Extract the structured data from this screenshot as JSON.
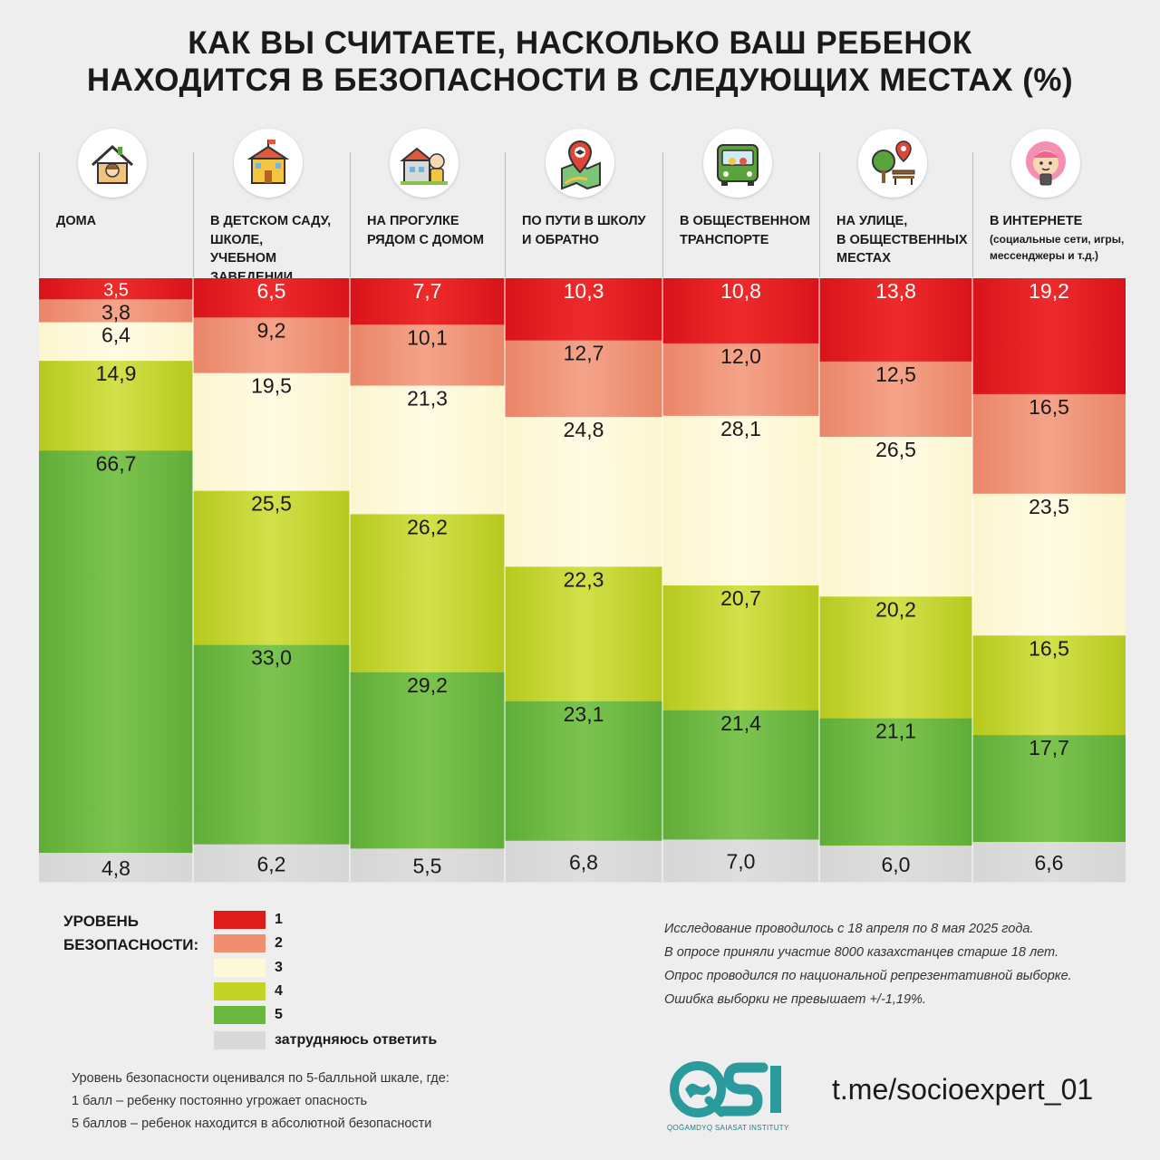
{
  "title": {
    "line1": "КАК ВЫ СЧИТАЕТЕ, НАСКОЛЬКО ВАШ РЕБЕНОК",
    "line2": "НАХОДИТСЯ В БЕЗОПАСНОСТИ В СЛЕДУЮЩИХ МЕСТАХ (%)"
  },
  "columns": [
    {
      "icon": "house-icon",
      "label": [
        "ДОМА"
      ]
    },
    {
      "icon": "school-building-icon",
      "label": [
        "В ДЕТСКОМ САДУ,",
        "ШКОЛЕ,",
        "УЧЕБНОМ ЗАВЕДЕНИИ"
      ]
    },
    {
      "icon": "child-walk-icon",
      "label": [
        "НА ПРОГУЛКЕ",
        "РЯДОМ С ДОМОМ"
      ]
    },
    {
      "icon": "route-map-pin-icon",
      "label": [
        "ПО ПУТИ В ШКОЛУ",
        "И ОБРАТНО"
      ]
    },
    {
      "icon": "bus-icon",
      "label": [
        "В ОБЩЕСТВЕННОМ",
        "ТРАНСПОРТЕ"
      ]
    },
    {
      "icon": "street-tree-bench-icon",
      "label": [
        "НА УЛИЦЕ,",
        "В ОБЩЕСТВЕННЫХ",
        "МЕСТАХ"
      ]
    },
    {
      "icon": "girl-with-phone-icon",
      "label": [
        "В ИНТЕРНЕТЕ"
      ],
      "sublabel": [
        "(социальные сети, игры,",
        "мессенджеры и т.д.)"
      ]
    }
  ],
  "chart_data": {
    "type": "bar",
    "stacked": true,
    "categories": [
      "ДОМА",
      "В ДЕТСКОМ САДУ, ШКОЛЕ, УЧЕБНОМ ЗАВЕДЕНИИ",
      "НА ПРОГУЛКЕ РЯДОМ С ДОМОМ",
      "ПО ПУТИ В ШКОЛУ И ОБРАТНО",
      "В ОБЩЕСТВЕННОМ ТРАНСПОРТЕ",
      "НА УЛИЦЕ, В ОБЩЕСТВЕННЫХ МЕСТАХ",
      "В ИНТЕРНЕТЕ (социальные сети, игры, мессенджеры и т.д.)"
    ],
    "series": [
      {
        "name": "1",
        "color": "#e01b1b",
        "values": [
          3.5,
          6.5,
          7.7,
          10.3,
          10.8,
          13.8,
          19.2
        ]
      },
      {
        "name": "2",
        "color": "#ee8f72",
        "values": [
          3.8,
          9.2,
          10.1,
          12.7,
          12.0,
          12.5,
          16.5
        ]
      },
      {
        "name": "3",
        "color": "#fdf9d6",
        "values": [
          6.4,
          19.5,
          21.3,
          24.8,
          28.1,
          26.5,
          23.5
        ]
      },
      {
        "name": "4",
        "color": "#c3d428",
        "values": [
          14.9,
          25.5,
          26.2,
          22.3,
          20.7,
          20.2,
          16.5
        ]
      },
      {
        "name": "5",
        "color": "#6ab740",
        "values": [
          66.7,
          33.0,
          29.2,
          23.1,
          21.4,
          21.1,
          17.7
        ]
      },
      {
        "name": "затрудняюсь ответить",
        "color": "#d9d9d9",
        "values": [
          4.8,
          6.2,
          5.5,
          6.8,
          7.0,
          6.0,
          6.6
        ]
      }
    ],
    "labels": [
      [
        "3,5",
        "3,8",
        "6,4",
        "14,9",
        "66,7",
        "4,8"
      ],
      [
        "6,5",
        "9,2",
        "19,5",
        "25,5",
        "33,0",
        "6,2"
      ],
      [
        "7,7",
        "10,1",
        "21,3",
        "26,2",
        "29,2",
        "5,5"
      ],
      [
        "10,3",
        "12,7",
        "24,8",
        "22,3",
        "23,1",
        "6,8"
      ],
      [
        "10,8",
        "12,0",
        "28,1",
        "20,7",
        "21,4",
        "7,0"
      ],
      [
        "13,8",
        "12,5",
        "26,5",
        "20,2",
        "21,1",
        "6,0"
      ],
      [
        "19,2",
        "16,5",
        "23,5",
        "16,5",
        "17,7",
        "6,6"
      ]
    ],
    "ylim": [
      0,
      100
    ],
    "legend_position": "bottom-left"
  },
  "legend": {
    "title": [
      "УРОВЕНЬ",
      "БЕЗОПАСНОСТИ:"
    ],
    "items": [
      {
        "label": "1",
        "color": "#e01b1b"
      },
      {
        "label": "2",
        "color": "#ee8f72"
      },
      {
        "label": "3",
        "color": "#fdf9d6"
      },
      {
        "label": "4",
        "color": "#c3d428"
      },
      {
        "label": "5",
        "color": "#6ab740"
      },
      {
        "label": "затрудняюсь ответить",
        "color": "#d9d9d9"
      }
    ]
  },
  "note": [
    "Исследование проводилось с 18 апреля по 8 мая 2025 года.",
    "В опросе приняли участие 8000 казахстанцев старше 18 лет.",
    "Опрос проводился по национальной репрезентативной выборке.",
    "Ошибка выборки не превышает +/-1,19%."
  ],
  "scale_note": [
    "Уровень безопасности оценивался по 5-балльной шкале, где:",
    "1 балл – ребенку постоянно угрожает опасность",
    "5 баллов – ребенок находится в абсолютной безопасности"
  ],
  "logo": {
    "mark": "QSI",
    "subtitle": "QOĞAMDYQ SAIASAT INSTITUTY",
    "brand_color": "#2a9a9c"
  },
  "link": "t.me/socioexpert_01"
}
